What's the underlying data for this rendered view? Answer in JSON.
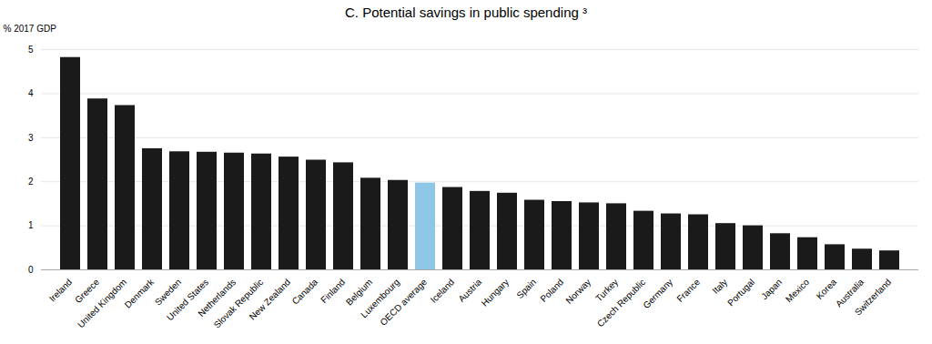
{
  "chart_data": {
    "type": "bar",
    "title": "C. Potential savings in public spending ³",
    "ylabel": "% 2017 GDP",
    "categories": [
      "Ireland",
      "Greece",
      "United Kingdom",
      "Denmark",
      "Sweden",
      "United States",
      "Netherlands",
      "Slovak Republic",
      "New Zealand",
      "Canada",
      "Finland",
      "Belgium",
      "Luxembourg",
      "OECD average",
      "Iceland",
      "Austria",
      "Hungary",
      "Spain",
      "Poland",
      "Norway",
      "Turkey",
      "Czech Republic",
      "Germany",
      "France",
      "Italy",
      "Portugal",
      "Japan",
      "Mexico",
      "Korea",
      "Australia",
      "Switzerland"
    ],
    "values": [
      4.82,
      3.88,
      3.73,
      2.75,
      2.68,
      2.67,
      2.65,
      2.63,
      2.56,
      2.49,
      2.43,
      2.08,
      2.03,
      1.97,
      1.87,
      1.78,
      1.74,
      1.58,
      1.55,
      1.52,
      1.5,
      1.33,
      1.27,
      1.25,
      1.05,
      1.0,
      0.82,
      0.73,
      0.57,
      0.47,
      0.43
    ],
    "colors": [
      "#1a1a1a",
      "#1a1a1a",
      "#1a1a1a",
      "#1a1a1a",
      "#1a1a1a",
      "#1a1a1a",
      "#1a1a1a",
      "#1a1a1a",
      "#1a1a1a",
      "#1a1a1a",
      "#1a1a1a",
      "#1a1a1a",
      "#1a1a1a",
      "#8ec6e6",
      "#1a1a1a",
      "#1a1a1a",
      "#1a1a1a",
      "#1a1a1a",
      "#1a1a1a",
      "#1a1a1a",
      "#1a1a1a",
      "#1a1a1a",
      "#1a1a1a",
      "#1a1a1a",
      "#1a1a1a",
      "#1a1a1a",
      "#1a1a1a",
      "#1a1a1a",
      "#1a1a1a",
      "#1a1a1a",
      "#1a1a1a"
    ],
    "ylim": [
      0,
      5
    ],
    "yticks": [
      0,
      1,
      2,
      3,
      4,
      5
    ],
    "grid": true
  }
}
